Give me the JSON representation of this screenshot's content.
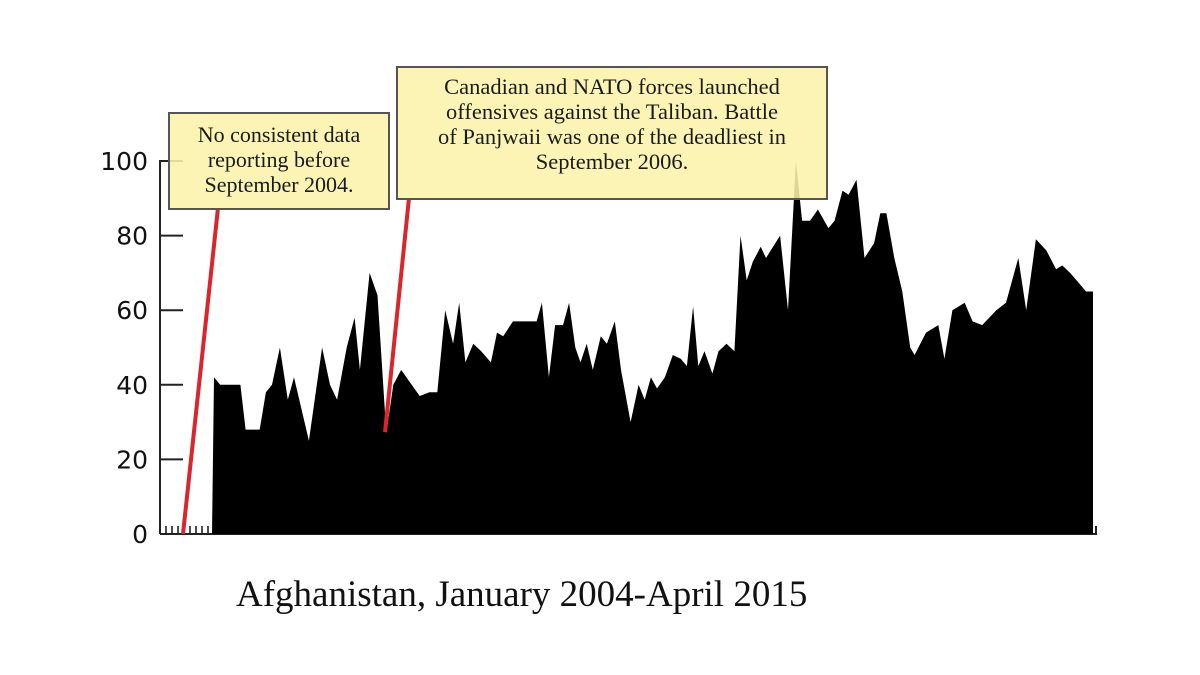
{
  "chart_data": {
    "type": "area",
    "title": "",
    "xlabel": "Afghanistan, January 2004-April 2015",
    "ylabel": "",
    "ylim": [
      0,
      100
    ],
    "yticks": [
      0,
      20,
      40,
      60,
      80,
      100
    ],
    "ytick_labels": [
      "0",
      "20",
      "40",
      "60",
      "80",
      "100"
    ],
    "x_range": [
      "January 2004",
      "April 2015"
    ],
    "grid": false,
    "legend": null,
    "fill_color": "#000000",
    "series": [
      {
        "name": "Afghanistan",
        "note": "values in chart units; x is position along the Sep 2004 - Apr 2015 span (0..1)",
        "points": [
          [
            0.0,
            42
          ],
          [
            0.007,
            40
          ],
          [
            0.03,
            40
          ],
          [
            0.036,
            28
          ],
          [
            0.052,
            28
          ],
          [
            0.059,
            38
          ],
          [
            0.066,
            40
          ],
          [
            0.075,
            50
          ],
          [
            0.084,
            36
          ],
          [
            0.091,
            42
          ],
          [
            0.1,
            33
          ],
          [
            0.108,
            25
          ],
          [
            0.123,
            50
          ],
          [
            0.132,
            40
          ],
          [
            0.14,
            36
          ],
          [
            0.151,
            50
          ],
          [
            0.16,
            58
          ],
          [
            0.166,
            44
          ],
          [
            0.177,
            70
          ],
          [
            0.186,
            64
          ],
          [
            0.196,
            27
          ],
          [
            0.204,
            40
          ],
          [
            0.213,
            44
          ],
          [
            0.222,
            41
          ],
          [
            0.234,
            37
          ],
          [
            0.245,
            38
          ],
          [
            0.254,
            38
          ],
          [
            0.263,
            60
          ],
          [
            0.272,
            51
          ],
          [
            0.279,
            62
          ],
          [
            0.286,
            46
          ],
          [
            0.295,
            51
          ],
          [
            0.304,
            49
          ],
          [
            0.315,
            46
          ],
          [
            0.322,
            54
          ],
          [
            0.329,
            53
          ],
          [
            0.34,
            57
          ],
          [
            0.352,
            57
          ],
          [
            0.367,
            57
          ],
          [
            0.373,
            62
          ],
          [
            0.381,
            42
          ],
          [
            0.388,
            56
          ],
          [
            0.397,
            56
          ],
          [
            0.404,
            62
          ],
          [
            0.411,
            50
          ],
          [
            0.417,
            46
          ],
          [
            0.424,
            51
          ],
          [
            0.431,
            44
          ],
          [
            0.44,
            53
          ],
          [
            0.447,
            51
          ],
          [
            0.456,
            57
          ],
          [
            0.463,
            44
          ],
          [
            0.474,
            30
          ],
          [
            0.483,
            40
          ],
          [
            0.49,
            36
          ],
          [
            0.497,
            42
          ],
          [
            0.504,
            39
          ],
          [
            0.513,
            42
          ],
          [
            0.522,
            48
          ],
          [
            0.531,
            47
          ],
          [
            0.538,
            45
          ],
          [
            0.545,
            61
          ],
          [
            0.551,
            45
          ],
          [
            0.558,
            49
          ],
          [
            0.567,
            43
          ],
          [
            0.574,
            49
          ],
          [
            0.583,
            51
          ],
          [
            0.592,
            49
          ],
          [
            0.599,
            80
          ],
          [
            0.606,
            68
          ],
          [
            0.613,
            73
          ],
          [
            0.622,
            77
          ],
          [
            0.628,
            74
          ],
          [
            0.644,
            80
          ],
          [
            0.653,
            60
          ],
          [
            0.662,
            100
          ],
          [
            0.669,
            84
          ],
          [
            0.678,
            84
          ],
          [
            0.687,
            87
          ],
          [
            0.699,
            82
          ],
          [
            0.706,
            84
          ],
          [
            0.715,
            92
          ],
          [
            0.722,
            91
          ],
          [
            0.731,
            95
          ],
          [
            0.74,
            74
          ],
          [
            0.751,
            78
          ],
          [
            0.758,
            86
          ],
          [
            0.765,
            86
          ],
          [
            0.774,
            74
          ],
          [
            0.783,
            65
          ],
          [
            0.792,
            50
          ],
          [
            0.797,
            48
          ],
          [
            0.81,
            54
          ],
          [
            0.824,
            56
          ],
          [
            0.831,
            47
          ],
          [
            0.84,
            60
          ],
          [
            0.854,
            62
          ],
          [
            0.863,
            57
          ],
          [
            0.874,
            56
          ],
          [
            0.89,
            60
          ],
          [
            0.901,
            62
          ],
          [
            0.915,
            74
          ],
          [
            0.924,
            60
          ],
          [
            0.935,
            79
          ],
          [
            0.947,
            76
          ],
          [
            0.958,
            71
          ],
          [
            0.965,
            72
          ],
          [
            0.974,
            70
          ],
          [
            0.985,
            67
          ],
          [
            0.992,
            65
          ],
          [
            1.0,
            65
          ]
        ]
      }
    ],
    "annotations": [
      {
        "id": "no-data",
        "lines": [
          "No consistent data",
          "reporting before",
          "September 2004."
        ],
        "target": "September 2004 (start of data)",
        "line_color": "#d9252b"
      },
      {
        "id": "panjwaii",
        "lines": [
          "Canadian and NATO forces launched",
          "offensives against the Taliban. Battle",
          "of Panjwaii was one of the deadliest in",
          "September 2006."
        ],
        "target": "September 2006 (dip to ~27)",
        "line_color": "#d9252b"
      }
    ]
  },
  "annotations": {
    "box1": {
      "line1": "No consistent data",
      "line2": "reporting before",
      "line3": "September 2004."
    },
    "box2": {
      "line1": "Canadian and NATO forces launched",
      "line2": "offensives against the Taliban. Battle",
      "line3": "of Panjwaii was one of the deadliest in",
      "line4": "September 2006."
    }
  },
  "axis": {
    "y_labels": [
      "0",
      "20",
      "40",
      "60",
      "80",
      "100"
    ],
    "x_caption": "Afghanistan, January 2004-April 2015"
  },
  "colors": {
    "area": "#000000",
    "annotation_line": "#d9252b",
    "annotation_fill": "#fcf2aa",
    "annotation_border": "#555555"
  }
}
